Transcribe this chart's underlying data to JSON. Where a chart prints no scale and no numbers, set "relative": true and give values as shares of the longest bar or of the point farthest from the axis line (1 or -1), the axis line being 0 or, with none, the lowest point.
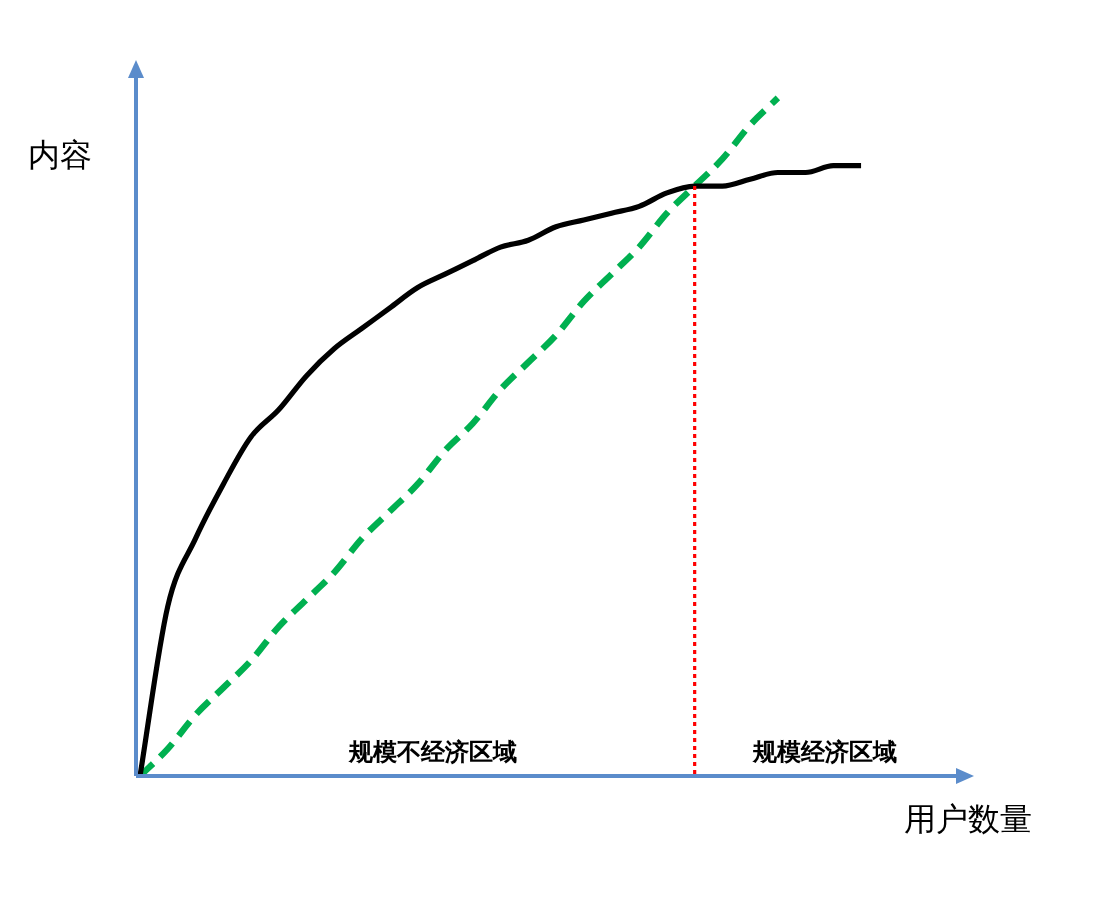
{
  "chart_data": {
    "type": "line",
    "relative": true,
    "xlabel": "用户数量",
    "ylabel": "内容",
    "categories": [
      null,
      null,
      null,
      null,
      null,
      null,
      null,
      null,
      null,
      null,
      null,
      null,
      null,
      null,
      null,
      null,
      null,
      null,
      null,
      null,
      null,
      null,
      null,
      null,
      null,
      null,
      null,
      null,
      null,
      null,
      null
    ],
    "series": [
      {
        "color": "#000000",
        "line_style": "solid",
        "values": [
          0,
          0.25,
          0.35,
          0.43,
          0.5,
          0.54,
          0.59,
          0.63,
          0.66,
          0.69,
          0.72,
          0.74,
          0.76,
          0.78,
          0.79,
          0.81,
          0.82,
          0.83,
          0.84,
          0.86,
          0.87,
          0.87,
          0.88,
          0.89,
          0.89,
          0.9,
          0.9,
          null,
          null,
          null,
          null
        ]
      },
      {
        "color": "#00b050",
        "line_style": "dashed",
        "values": [
          0,
          0.04,
          0.09,
          0.13,
          0.17,
          0.22,
          0.26,
          0.3,
          0.35,
          0.39,
          0.43,
          0.48,
          0.52,
          0.57,
          0.61,
          0.65,
          0.7,
          0.74,
          0.78,
          0.83,
          0.87,
          0.91,
          0.96,
          1,
          null,
          null,
          null,
          null,
          null,
          null,
          null
        ]
      }
    ],
    "annotations": [
      "规模不经济区域",
      "规模经济区域"
    ]
  }
}
